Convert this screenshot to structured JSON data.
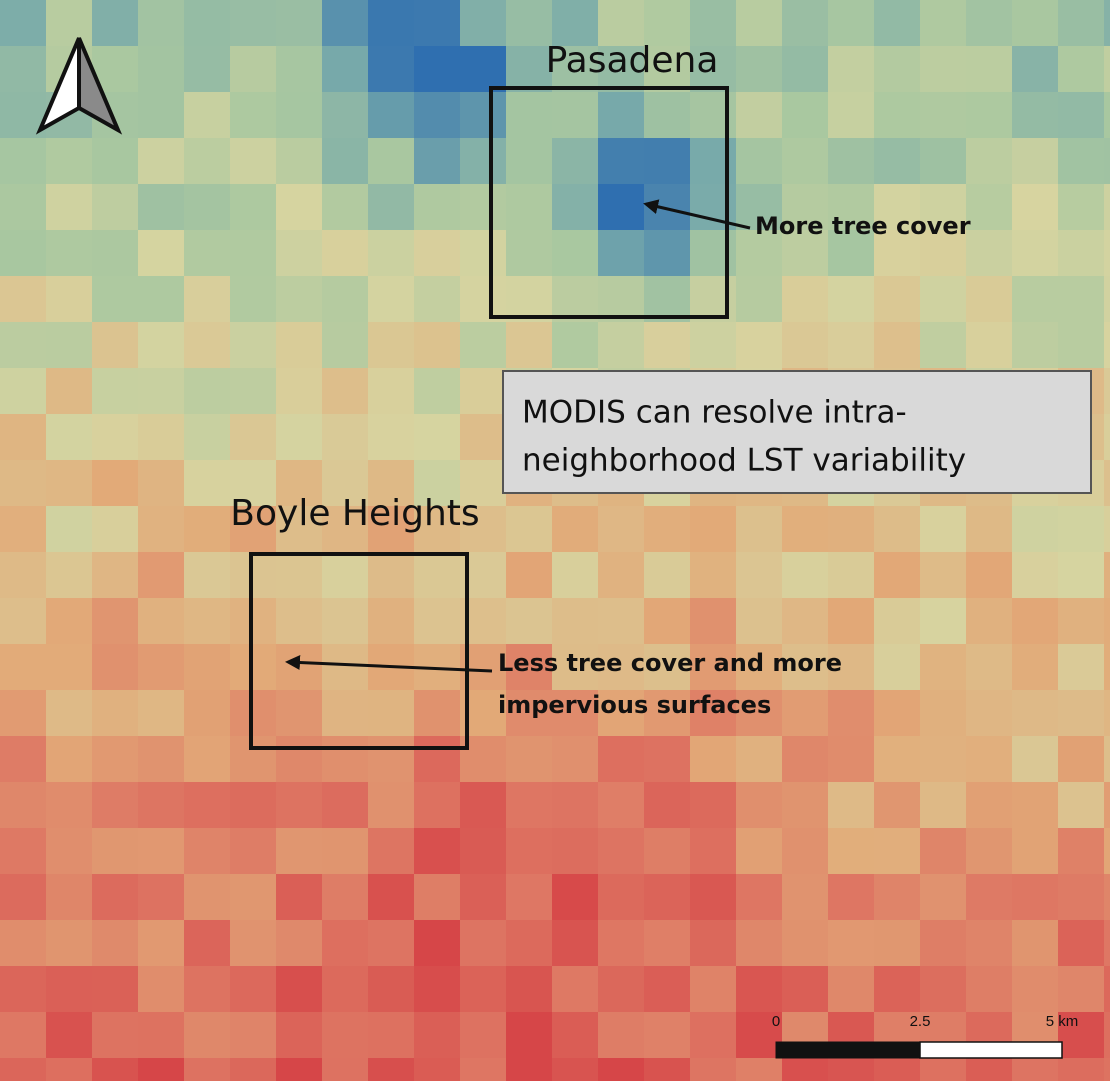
{
  "map": {
    "labels": {
      "pasadena": "Pasadena",
      "boyle_heights": "Boyle Heights"
    },
    "annotations": {
      "more_tree": "More tree cover",
      "less_tree": [
        "Less tree cover and more",
        "impervious surfaces"
      ],
      "callout": [
        "MODIS can resolve  intra-",
        "neighborhood  LST variability"
      ]
    },
    "scale_bar": {
      "labels": [
        "0",
        "2.5",
        "5 km"
      ]
    }
  }
}
